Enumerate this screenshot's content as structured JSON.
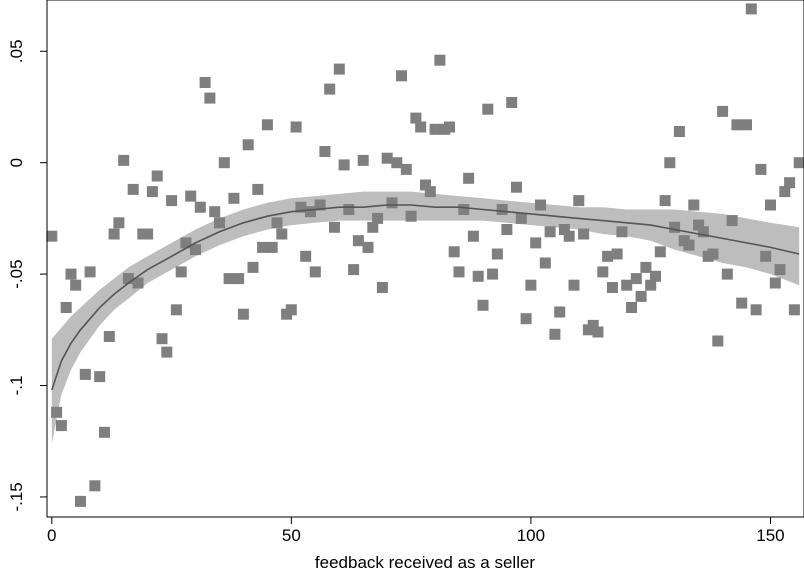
{
  "chart_data": {
    "type": "scatter",
    "title": "",
    "xlabel": "feedback received as a seller",
    "ylabel": "",
    "xlim": [
      -1,
      157
    ],
    "ylim": [
      -0.159,
      0.073
    ],
    "xticks": [
      0,
      50,
      100,
      150
    ],
    "xtick_labels": [
      "0",
      "50",
      "100",
      "150"
    ],
    "yticks": [
      -0.15,
      -0.1,
      -0.05,
      0,
      0.05
    ],
    "ytick_labels": [
      "-.15",
      "-.1",
      "-.05",
      "0",
      ".05"
    ],
    "grid": false,
    "legend": "none",
    "colors": {
      "points": "#7f7f7f",
      "line": "#555555",
      "band": "#bdbdbd"
    },
    "series": [
      {
        "type": "scatter",
        "points": [
          [
            0,
            -0.033
          ],
          [
            1,
            -0.112
          ],
          [
            2,
            -0.118
          ],
          [
            3,
            -0.065
          ],
          [
            4,
            -0.05
          ],
          [
            5,
            -0.055
          ],
          [
            6,
            -0.152
          ],
          [
            7,
            -0.095
          ],
          [
            8,
            -0.049
          ],
          [
            9,
            -0.145
          ],
          [
            10,
            -0.096
          ],
          [
            11,
            -0.121
          ],
          [
            12,
            -0.078
          ],
          [
            13,
            -0.032
          ],
          [
            14,
            -0.027
          ],
          [
            15,
            0.001
          ],
          [
            16,
            -0.052
          ],
          [
            17,
            -0.012
          ],
          [
            18,
            -0.054
          ],
          [
            19,
            -0.032
          ],
          [
            20,
            -0.032
          ],
          [
            21,
            -0.013
          ],
          [
            22,
            -0.006
          ],
          [
            23,
            -0.079
          ],
          [
            24,
            -0.085
          ],
          [
            25,
            -0.017
          ],
          [
            26,
            -0.066
          ],
          [
            27,
            -0.049
          ],
          [
            28,
            -0.036
          ],
          [
            29,
            -0.015
          ],
          [
            30,
            -0.039
          ],
          [
            31,
            -0.02
          ],
          [
            32,
            0.036
          ],
          [
            33,
            0.029
          ],
          [
            34,
            -0.022
          ],
          [
            35,
            -0.027
          ],
          [
            36,
            0.0
          ],
          [
            37,
            -0.052
          ],
          [
            38,
            -0.016
          ],
          [
            39,
            -0.052
          ],
          [
            40,
            -0.068
          ],
          [
            41,
            0.008
          ],
          [
            42,
            -0.047
          ],
          [
            43,
            -0.012
          ],
          [
            44,
            -0.038
          ],
          [
            45,
            0.017
          ],
          [
            46,
            -0.038
          ],
          [
            47,
            -0.027
          ],
          [
            48,
            -0.032
          ],
          [
            49,
            -0.068
          ],
          [
            50,
            -0.066
          ],
          [
            51,
            0.016
          ],
          [
            52,
            -0.02
          ],
          [
            53,
            -0.042
          ],
          [
            54,
            -0.022
          ],
          [
            55,
            -0.049
          ],
          [
            56,
            -0.019
          ],
          [
            57,
            0.005
          ],
          [
            58,
            0.033
          ],
          [
            59,
            -0.029
          ],
          [
            60,
            0.042
          ],
          [
            61,
            -0.001
          ],
          [
            62,
            -0.021
          ],
          [
            63,
            -0.048
          ],
          [
            64,
            -0.035
          ],
          [
            65,
            0.001
          ],
          [
            66,
            -0.038
          ],
          [
            67,
            -0.029
          ],
          [
            68,
            -0.025
          ],
          [
            69,
            -0.056
          ],
          [
            70,
            0.002
          ],
          [
            71,
            -0.018
          ],
          [
            72,
            0.0
          ],
          [
            73,
            0.039
          ],
          [
            74,
            -0.003
          ],
          [
            75,
            -0.024
          ],
          [
            76,
            0.02
          ],
          [
            77,
            0.016
          ],
          [
            78,
            -0.01
          ],
          [
            79,
            -0.013
          ],
          [
            80,
            0.015
          ],
          [
            81,
            0.046
          ],
          [
            82,
            0.015
          ],
          [
            83,
            0.016
          ],
          [
            84,
            -0.04
          ],
          [
            85,
            -0.049
          ],
          [
            86,
            -0.021
          ],
          [
            87,
            -0.007
          ],
          [
            88,
            -0.033
          ],
          [
            89,
            -0.051
          ],
          [
            90,
            -0.064
          ],
          [
            91,
            0.024
          ],
          [
            92,
            -0.05
          ],
          [
            93,
            -0.041
          ],
          [
            94,
            -0.021
          ],
          [
            95,
            -0.03
          ],
          [
            96,
            0.027
          ],
          [
            97,
            -0.011
          ],
          [
            98,
            -0.025
          ],
          [
            99,
            -0.07
          ],
          [
            100,
            -0.055
          ],
          [
            101,
            -0.036
          ],
          [
            102,
            -0.019
          ],
          [
            103,
            -0.045
          ],
          [
            104,
            -0.031
          ],
          [
            105,
            -0.077
          ],
          [
            106,
            -0.067
          ],
          [
            107,
            -0.03
          ],
          [
            108,
            -0.033
          ],
          [
            109,
            -0.055
          ],
          [
            110,
            -0.017
          ],
          [
            111,
            -0.032
          ],
          [
            112,
            -0.075
          ],
          [
            113,
            -0.073
          ],
          [
            114,
            -0.076
          ],
          [
            115,
            -0.049
          ],
          [
            116,
            -0.042
          ],
          [
            117,
            -0.056
          ],
          [
            118,
            -0.041
          ],
          [
            119,
            -0.031
          ],
          [
            120,
            -0.055
          ],
          [
            121,
            -0.065
          ],
          [
            122,
            -0.052
          ],
          [
            123,
            -0.06
          ],
          [
            124,
            -0.047
          ],
          [
            125,
            -0.055
          ],
          [
            126,
            -0.051
          ],
          [
            127,
            -0.04
          ],
          [
            128,
            -0.017
          ],
          [
            129,
            0.0
          ],
          [
            130,
            -0.029
          ],
          [
            131,
            0.014
          ],
          [
            132,
            -0.035
          ],
          [
            133,
            -0.037
          ],
          [
            134,
            -0.019
          ],
          [
            135,
            -0.028
          ],
          [
            136,
            -0.031
          ],
          [
            137,
            -0.042
          ],
          [
            138,
            -0.041
          ],
          [
            139,
            -0.08
          ],
          [
            140,
            0.023
          ],
          [
            141,
            -0.05
          ],
          [
            142,
            -0.026
          ],
          [
            143,
            0.017
          ],
          [
            144,
            -0.063
          ],
          [
            145,
            0.017
          ],
          [
            146,
            0.069
          ],
          [
            147,
            -0.066
          ],
          [
            148,
            -0.003
          ],
          [
            149,
            -0.042
          ],
          [
            150,
            -0.019
          ],
          [
            151,
            -0.054
          ],
          [
            152,
            -0.048
          ],
          [
            153,
            -0.013
          ],
          [
            154,
            -0.009
          ],
          [
            155,
            -0.066
          ],
          [
            156,
            0.0
          ]
        ]
      },
      {
        "type": "line",
        "x": [
          0,
          2,
          4,
          6,
          8,
          10,
          13,
          16,
          20,
          25,
          30,
          35,
          40,
          45,
          50,
          55,
          60,
          65,
          70,
          75,
          80,
          85,
          90,
          95,
          100,
          105,
          110,
          115,
          120,
          125,
          130,
          135,
          140,
          145,
          150,
          156
        ],
        "y": [
          -0.102,
          -0.089,
          -0.081,
          -0.075,
          -0.07,
          -0.065,
          -0.059,
          -0.054,
          -0.048,
          -0.042,
          -0.036,
          -0.031,
          -0.027,
          -0.024,
          -0.022,
          -0.021,
          -0.02,
          -0.02,
          -0.019,
          -0.019,
          -0.02,
          -0.02,
          -0.021,
          -0.022,
          -0.023,
          -0.024,
          -0.025,
          -0.026,
          -0.027,
          -0.028,
          -0.03,
          -0.032,
          -0.034,
          -0.036,
          -0.038,
          -0.041
        ],
        "band_upper": [
          -0.079,
          -0.074,
          -0.069,
          -0.065,
          -0.061,
          -0.057,
          -0.052,
          -0.047,
          -0.042,
          -0.036,
          -0.03,
          -0.025,
          -0.021,
          -0.018,
          -0.016,
          -0.015,
          -0.014,
          -0.013,
          -0.013,
          -0.013,
          -0.014,
          -0.015,
          -0.016,
          -0.017,
          -0.018,
          -0.019,
          -0.02,
          -0.02,
          -0.021,
          -0.021,
          -0.021,
          -0.022,
          -0.023,
          -0.025,
          -0.027,
          -0.029
        ],
        "band_lower": [
          -0.126,
          -0.104,
          -0.093,
          -0.085,
          -0.079,
          -0.073,
          -0.066,
          -0.061,
          -0.054,
          -0.048,
          -0.042,
          -0.037,
          -0.033,
          -0.03,
          -0.028,
          -0.027,
          -0.026,
          -0.026,
          -0.026,
          -0.026,
          -0.026,
          -0.026,
          -0.026,
          -0.027,
          -0.028,
          -0.029,
          -0.03,
          -0.032,
          -0.033,
          -0.035,
          -0.039,
          -0.042,
          -0.045,
          -0.047,
          -0.05,
          -0.055
        ]
      }
    ]
  }
}
